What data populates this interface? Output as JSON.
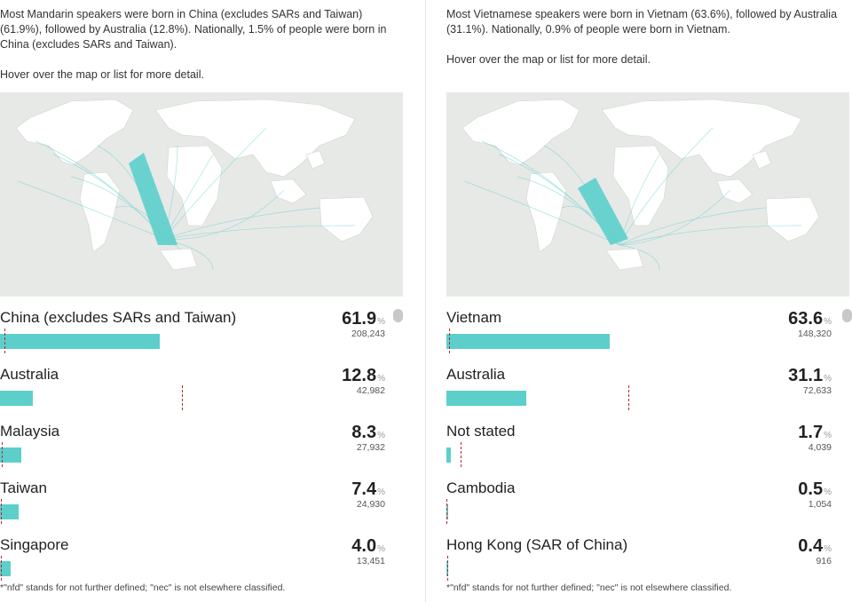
{
  "left": {
    "description": "Most Mandarin speakers were born in China (excludes SARs and Taiwan) (61.9%), followed by Australia (12.8%). Nationally, 1.5% of people were born in China (excludes SARs and Taiwan).",
    "hover_note": "Hover over the map or list for more detail.",
    "rows": [
      {
        "label": "China (excludes SARs and Taiwan)",
        "percent": "61.9",
        "count": "208,243",
        "share": 0.619,
        "national_share": 0.015
      },
      {
        "label": "Australia",
        "percent": "12.8",
        "count": "42,982",
        "share": 0.128,
        "national_share": 0.66
      },
      {
        "label": "Malaysia",
        "percent": "8.3",
        "count": "27,932",
        "share": 0.083,
        "national_share": 0.005
      },
      {
        "label": "Taiwan",
        "percent": "7.4",
        "count": "24,930",
        "share": 0.074,
        "national_share": 0.002
      },
      {
        "label": "Singapore",
        "percent": "4.0",
        "count": "13,451",
        "share": 0.04,
        "national_share": 0.002
      }
    ],
    "footnote": "*\"nfd\" stands for not further defined; \"nec\" is not elsewhere classified."
  },
  "right": {
    "description": "Most Vietnamese speakers were born in Vietnam (63.6%), followed by Australia (31.1%). Nationally, 0.9% of people were born in Vietnam.",
    "hover_note": "Hover over the map or list for more detail.",
    "rows": [
      {
        "label": "Vietnam",
        "percent": "63.6",
        "count": "148,320",
        "share": 0.636,
        "national_share": 0.009
      },
      {
        "label": "Australia",
        "percent": "31.1",
        "count": "72,633",
        "share": 0.311,
        "national_share": 0.66
      },
      {
        "label": "Not stated",
        "percent": "1.7",
        "count": "4,039",
        "share": 0.017,
        "national_share": 0.05
      },
      {
        "label": "Cambodia",
        "percent": "0.5",
        "count": "1,054",
        "share": 0.005,
        "national_share": 0.001
      },
      {
        "label": "Hong Kong (SAR of China)",
        "percent": "0.4",
        "count": "916",
        "share": 0.004,
        "national_share": 0.004
      }
    ],
    "footnote": "*\"nfd\" stands for not further defined; \"nec\" is not elsewhere classified."
  },
  "unit_symbol": "%",
  "colors": {
    "bar": "#5ccfcb",
    "reference_line": "#b5282d",
    "map_water": "#e7e9e7",
    "map_land": "#ffffff",
    "flow": "#5ccfcb"
  }
}
